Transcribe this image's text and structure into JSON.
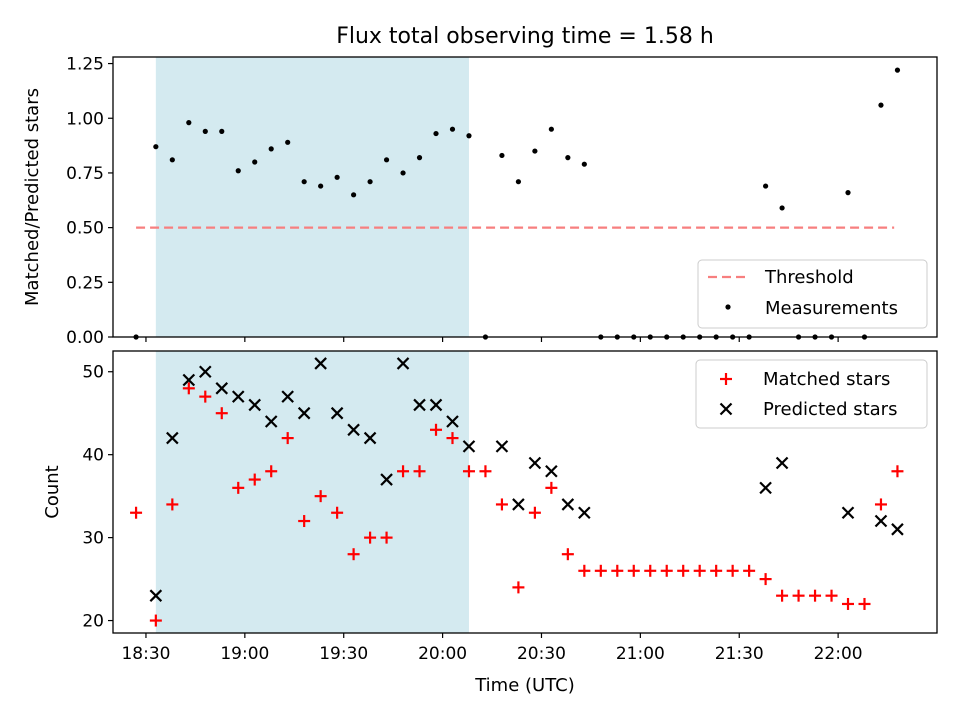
{
  "chart_data": [
    {
      "type": "scatter",
      "title": "Flux total observing time = 1.58 h",
      "ylabel": "Matched/Predicted stars",
      "xlabel": "",
      "xlim": [
        "18:20",
        "22:30"
      ],
      "ylim": [
        0.0,
        1.28
      ],
      "yticks": [
        0.0,
        0.25,
        0.5,
        0.75,
        1.0,
        1.25
      ],
      "ytick_labels": [
        "0.00",
        "0.25",
        "0.50",
        "0.75",
        "1.00",
        "1.25"
      ],
      "xticks": [
        "18:30",
        "19:00",
        "19:30",
        "20:00",
        "20:30",
        "21:00",
        "21:30",
        "22:00"
      ],
      "shaded_span": {
        "start": "18:33",
        "end": "20:08",
        "color": "#d4eaf0"
      },
      "threshold": {
        "name": "Threshold",
        "value": 0.5,
        "x_start": "18:27",
        "x_end": "22:17",
        "color": "#f77f7f"
      },
      "legend": {
        "position": "lower right",
        "entries": [
          "Threshold",
          "Measurements"
        ]
      },
      "series": [
        {
          "name": "Measurements",
          "color": "#000000",
          "x": [
            "18:27",
            "18:33",
            "18:38",
            "18:43",
            "18:48",
            "18:53",
            "18:58",
            "19:03",
            "19:08",
            "19:13",
            "19:18",
            "19:23",
            "19:28",
            "19:33",
            "19:38",
            "19:43",
            "19:48",
            "19:53",
            "19:58",
            "20:03",
            "20:08",
            "20:13",
            "20:18",
            "20:23",
            "20:28",
            "20:33",
            "20:38",
            "20:43",
            "20:48",
            "20:53",
            "20:58",
            "21:03",
            "21:08",
            "21:13",
            "21:18",
            "21:23",
            "21:28",
            "21:33",
            "21:38",
            "21:43",
            "21:48",
            "21:53",
            "21:58",
            "22:03",
            "22:08",
            "22:13",
            "22:18"
          ],
          "y": [
            0.0,
            0.87,
            0.81,
            0.98,
            0.94,
            0.94,
            0.76,
            0.8,
            0.86,
            0.89,
            0.71,
            0.69,
            0.73,
            0.65,
            0.71,
            0.81,
            0.75,
            0.82,
            0.93,
            0.95,
            0.92,
            0.0,
            0.83,
            0.71,
            0.85,
            0.95,
            0.82,
            0.79,
            0.0,
            0.0,
            0.0,
            0.0,
            0.0,
            0.0,
            0.0,
            0.0,
            0.0,
            0.0,
            0.69,
            0.59,
            0.0,
            0.0,
            0.0,
            0.66,
            0.0,
            1.06,
            1.22
          ]
        }
      ]
    },
    {
      "type": "scatter",
      "title": "",
      "ylabel": "Count",
      "xlabel": "Time (UTC)",
      "xlim": [
        "18:20",
        "22:30"
      ],
      "ylim": [
        18.5,
        52.5
      ],
      "yticks": [
        20,
        30,
        40,
        50
      ],
      "ytick_labels": [
        "20",
        "30",
        "40",
        "50"
      ],
      "xticks": [
        "18:30",
        "19:00",
        "19:30",
        "20:00",
        "20:30",
        "21:00",
        "21:30",
        "22:00"
      ],
      "shaded_span": {
        "start": "18:33",
        "end": "20:08",
        "color": "#d4eaf0"
      },
      "legend": {
        "position": "upper right",
        "entries": [
          "Matched stars",
          "Predicted stars"
        ]
      },
      "series": [
        {
          "name": "Matched stars",
          "marker": "+",
          "color": "#ff0000",
          "x": [
            "18:27",
            "18:33",
            "18:38",
            "18:43",
            "18:48",
            "18:53",
            "18:58",
            "19:03",
            "19:08",
            "19:13",
            "19:18",
            "19:23",
            "19:28",
            "19:33",
            "19:38",
            "19:43",
            "19:48",
            "19:53",
            "19:58",
            "20:03",
            "20:08",
            "20:13",
            "20:18",
            "20:23",
            "20:28",
            "20:33",
            "20:38",
            "20:43",
            "20:48",
            "20:53",
            "20:58",
            "21:03",
            "21:08",
            "21:13",
            "21:18",
            "21:23",
            "21:28",
            "21:33",
            "21:38",
            "21:43",
            "21:48",
            "21:53",
            "21:58",
            "22:03",
            "22:08",
            "22:13",
            "22:18"
          ],
          "y": [
            33,
            20,
            34,
            48,
            47,
            45,
            36,
            37,
            38,
            42,
            32,
            35,
            33,
            28,
            30,
            30,
            38,
            38,
            43,
            42,
            38,
            38,
            34,
            24,
            33,
            36,
            28,
            26,
            26,
            26,
            26,
            26,
            26,
            26,
            26,
            26,
            26,
            26,
            25,
            23,
            23,
            23,
            23,
            22,
            22,
            34,
            38
          ]
        },
        {
          "name": "Predicted stars",
          "marker": "x",
          "color": "#000000",
          "x": [
            "18:33",
            "18:38",
            "18:43",
            "18:48",
            "18:53",
            "18:58",
            "19:03",
            "19:08",
            "19:13",
            "19:18",
            "19:23",
            "19:28",
            "19:33",
            "19:38",
            "19:43",
            "19:48",
            "19:53",
            "19:58",
            "20:03",
            "20:08",
            "20:18",
            "20:23",
            "20:28",
            "20:33",
            "20:38",
            "20:43",
            "21:38",
            "21:43",
            "22:03",
            "22:13",
            "22:18"
          ],
          "y": [
            23,
            42,
            49,
            50,
            48,
            47,
            46,
            44,
            47,
            45,
            51,
            45,
            43,
            42,
            37,
            51,
            46,
            46,
            44,
            41,
            41,
            34,
            39,
            38,
            34,
            33,
            36,
            39,
            33,
            32,
            31
          ]
        }
      ]
    }
  ]
}
